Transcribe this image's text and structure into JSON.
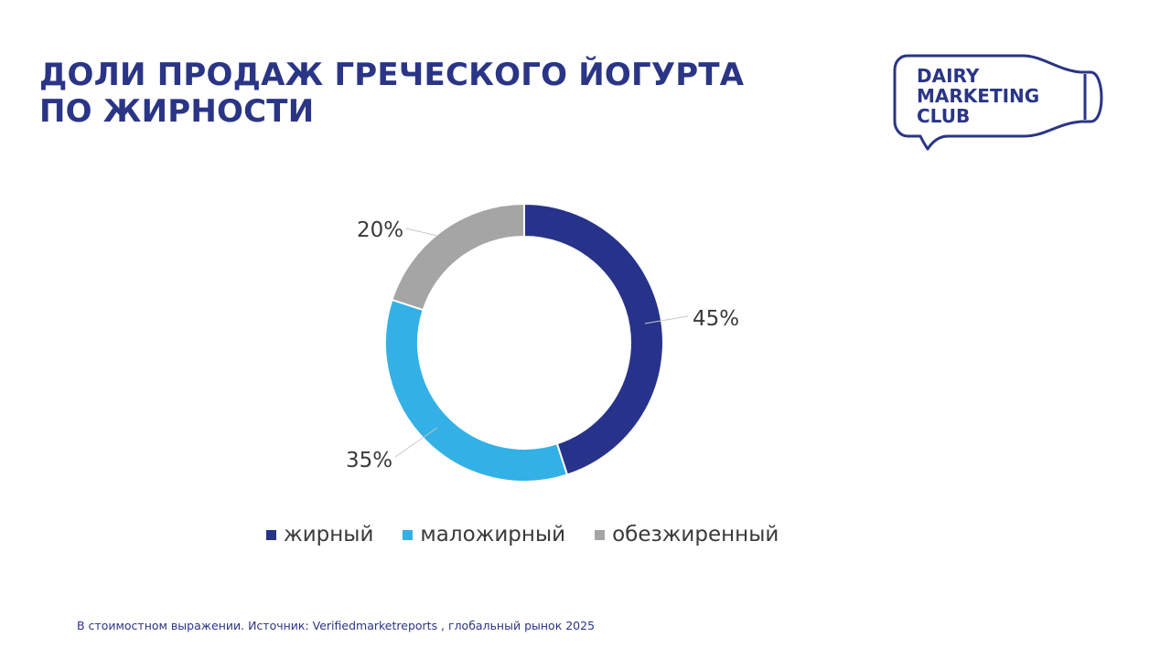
{
  "title": {
    "line1": "ДОЛИ ПРОДАЖ ГРЕЧЕСКОГО ЙОГУРТА",
    "line2": "ПО ЖИРНОСТИ"
  },
  "logo": {
    "line1": "DAIRY",
    "line2": "MARKETING",
    "line3": "CLUB",
    "color": "#2a3586"
  },
  "chart_data": {
    "type": "pie",
    "style": "donut",
    "categories": [
      "жирный",
      "маложирный",
      "обезжиренный"
    ],
    "values": [
      45,
      35,
      20
    ],
    "data_labels": [
      "45%",
      "35%",
      "20%"
    ],
    "colors": [
      "#27338a",
      "#33b0e6",
      "#a5a5a5"
    ],
    "legend_position": "bottom"
  },
  "footnote": "В стоимостном выражении. Источник: Verifiedmarketreports , глобальный рынок 2025"
}
